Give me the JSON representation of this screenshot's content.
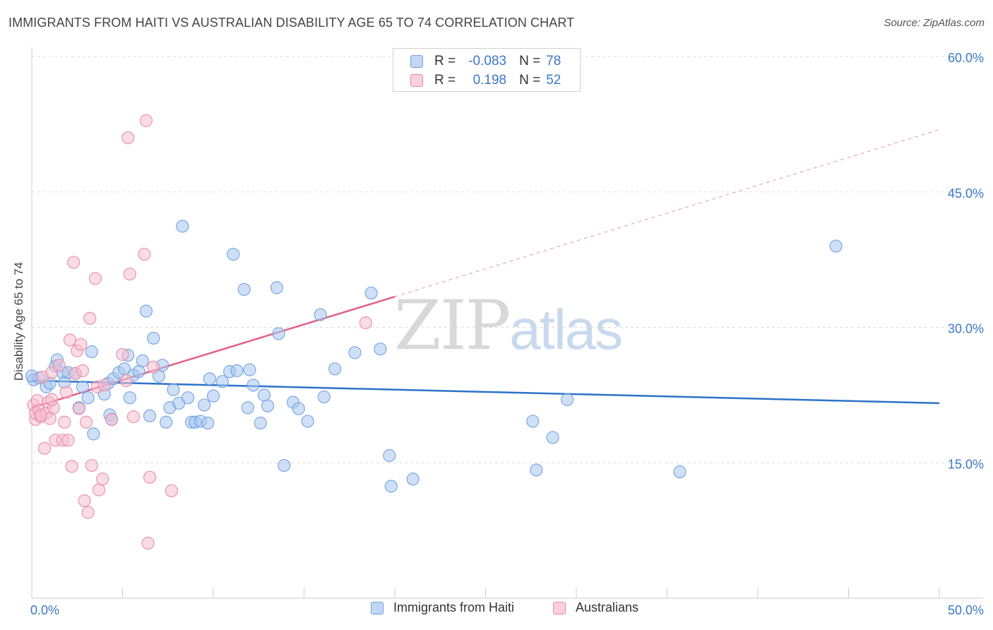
{
  "chart_data": {
    "type": "scatter",
    "title": "IMMIGRANTS FROM HAITI VS AUSTRALIAN DISABILITY AGE 65 TO 74 CORRELATION CHART",
    "source": "Source: ZipAtlas.com",
    "xlabel": "",
    "ylabel": "Disability Age 65 to 74",
    "xlim": [
      0,
      50
    ],
    "ylim": [
      0,
      60
    ],
    "x_tick_labels": {
      "min": "0.0%",
      "max": "50.0%"
    },
    "y_ticks": [
      {
        "value": 15,
        "label": "15.0%"
      },
      {
        "value": 30,
        "label": "30.0%"
      },
      {
        "value": 45,
        "label": "45.0%"
      },
      {
        "value": 60,
        "label": "60.0%"
      }
    ],
    "grid": true,
    "legend": {
      "position": "top-center",
      "entries": [
        {
          "r_label": "R =",
          "r_value": "-0.083",
          "n_label": "N =",
          "n_value": "78"
        },
        {
          "r_label": "R =",
          "r_value": "0.198",
          "n_label": "N =",
          "n_value": "52"
        }
      ]
    },
    "series": [
      {
        "name": "Immigrants from Haiti",
        "color": "#6fa0e0",
        "fill": "#a8c6ef",
        "trend": {
          "x0": 0,
          "y0": 24.1,
          "x1": 50,
          "y1": 21.6,
          "color": "#2d72c9"
        },
        "points": [
          [
            0.1,
            24.2
          ],
          [
            0.4,
            24.4
          ],
          [
            0.8,
            23.4
          ],
          [
            1.0,
            23.8
          ],
          [
            1.3,
            25.7
          ],
          [
            1.4,
            26.4
          ],
          [
            1.7,
            25.0
          ],
          [
            1.8,
            23.9
          ],
          [
            2.0,
            25.0
          ],
          [
            2.4,
            24.9
          ],
          [
            2.6,
            21.1
          ],
          [
            2.8,
            23.4
          ],
          [
            3.1,
            22.2
          ],
          [
            3.3,
            27.3
          ],
          [
            3.4,
            18.2
          ],
          [
            4.0,
            22.6
          ],
          [
            4.2,
            23.8
          ],
          [
            4.3,
            20.3
          ],
          [
            4.4,
            19.8
          ],
          [
            4.5,
            24.3
          ],
          [
            4.8,
            25.0
          ],
          [
            5.1,
            25.4
          ],
          [
            5.3,
            26.9
          ],
          [
            5.4,
            22.2
          ],
          [
            5.6,
            24.7
          ],
          [
            5.9,
            25.1
          ],
          [
            6.1,
            26.3
          ],
          [
            6.3,
            31.8
          ],
          [
            6.5,
            20.2
          ],
          [
            6.7,
            28.8
          ],
          [
            7.0,
            24.6
          ],
          [
            7.2,
            25.8
          ],
          [
            7.4,
            19.5
          ],
          [
            7.6,
            21.1
          ],
          [
            7.8,
            23.1
          ],
          [
            8.1,
            21.6
          ],
          [
            8.3,
            41.2
          ],
          [
            8.6,
            22.2
          ],
          [
            8.8,
            19.5
          ],
          [
            9.0,
            19.5
          ],
          [
            9.3,
            19.6
          ],
          [
            9.5,
            21.4
          ],
          [
            9.7,
            19.4
          ],
          [
            9.8,
            24.3
          ],
          [
            10.0,
            22.4
          ],
          [
            10.5,
            24.0
          ],
          [
            10.9,
            25.1
          ],
          [
            11.1,
            38.1
          ],
          [
            11.3,
            25.2
          ],
          [
            11.7,
            34.2
          ],
          [
            11.9,
            21.1
          ],
          [
            12.0,
            25.3
          ],
          [
            12.2,
            23.6
          ],
          [
            12.6,
            19.4
          ],
          [
            12.8,
            22.5
          ],
          [
            13.0,
            21.3
          ],
          [
            13.5,
            34.4
          ],
          [
            13.6,
            29.3
          ],
          [
            13.9,
            14.7
          ],
          [
            14.4,
            21.7
          ],
          [
            14.7,
            21.0
          ],
          [
            15.2,
            19.6
          ],
          [
            15.9,
            31.4
          ],
          [
            16.1,
            22.3
          ],
          [
            16.7,
            25.4
          ],
          [
            17.8,
            27.2
          ],
          [
            18.7,
            33.8
          ],
          [
            19.2,
            27.6
          ],
          [
            19.7,
            15.8
          ],
          [
            19.8,
            12.4
          ],
          [
            21.0,
            13.2
          ],
          [
            27.6,
            19.6
          ],
          [
            27.8,
            14.2
          ],
          [
            28.7,
            17.8
          ],
          [
            29.5,
            22.0
          ],
          [
            35.7,
            14.0
          ],
          [
            44.3,
            39.0
          ],
          [
            0.0,
            24.6
          ]
        ]
      },
      {
        "name": "Australians",
        "color": "#e889a8",
        "fill": "#f6bfd0",
        "trend": {
          "x0": 0,
          "y0": 21.1,
          "x1": 20,
          "y1": 33.4,
          "dash_x1": 50,
          "dash_y1": 51.9,
          "color": "#e0608c"
        },
        "points": [
          [
            0.1,
            21.4
          ],
          [
            0.2,
            19.8
          ],
          [
            0.2,
            20.5
          ],
          [
            0.3,
            21.9
          ],
          [
            0.4,
            20.8
          ],
          [
            0.5,
            20.1
          ],
          [
            0.6,
            24.5
          ],
          [
            0.7,
            16.6
          ],
          [
            0.8,
            20.5
          ],
          [
            0.9,
            21.7
          ],
          [
            1.0,
            19.9
          ],
          [
            1.1,
            25.0
          ],
          [
            1.2,
            21.1
          ],
          [
            1.3,
            17.5
          ],
          [
            1.5,
            25.8
          ],
          [
            1.7,
            17.5
          ],
          [
            1.8,
            19.5
          ],
          [
            1.9,
            22.8
          ],
          [
            2.0,
            17.5
          ],
          [
            2.1,
            28.6
          ],
          [
            2.2,
            14.6
          ],
          [
            2.3,
            37.2
          ],
          [
            2.4,
            24.9
          ],
          [
            2.5,
            27.4
          ],
          [
            2.6,
            21.0
          ],
          [
            2.7,
            28.1
          ],
          [
            2.8,
            25.2
          ],
          [
            2.9,
            10.8
          ],
          [
            3.0,
            19.5
          ],
          [
            3.1,
            9.5
          ],
          [
            3.2,
            31.0
          ],
          [
            3.3,
            14.7
          ],
          [
            3.5,
            35.4
          ],
          [
            3.6,
            23.4
          ],
          [
            3.7,
            12.0
          ],
          [
            3.9,
            13.2
          ],
          [
            4.0,
            23.6
          ],
          [
            4.4,
            19.8
          ],
          [
            5.0,
            27.0
          ],
          [
            5.2,
            24.1
          ],
          [
            5.3,
            51.0
          ],
          [
            5.4,
            35.9
          ],
          [
            5.6,
            20.1
          ],
          [
            6.2,
            38.1
          ],
          [
            6.3,
            52.9
          ],
          [
            6.4,
            6.1
          ],
          [
            6.5,
            13.4
          ],
          [
            6.7,
            25.6
          ],
          [
            7.7,
            11.9
          ],
          [
            18.4,
            30.5
          ],
          [
            1.1,
            22.0
          ],
          [
            0.5,
            20.3
          ]
        ]
      }
    ]
  },
  "bottom_legend": [
    {
      "label": "Immigrants from Haiti"
    },
    {
      "label": "Australians"
    }
  ],
  "watermark": {
    "zip": "ZIP",
    "atlas": "atlas"
  }
}
